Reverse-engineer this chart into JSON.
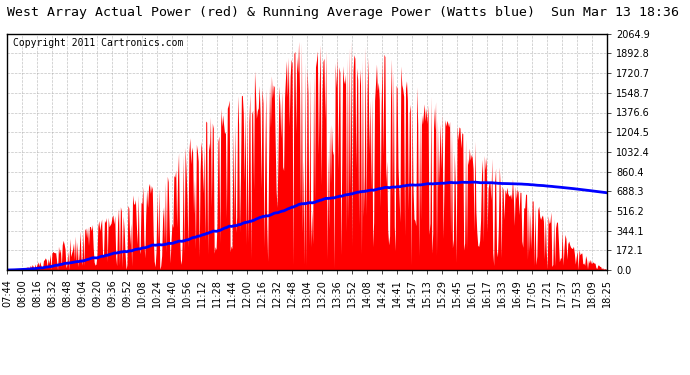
{
  "title": "West Array Actual Power (red) & Running Average Power (Watts blue)  Sun Mar 13 18:36",
  "copyright": "Copyright 2011 Cartronics.com",
  "background_color": "#ffffff",
  "plot_bg_color": "#ffffff",
  "grid_color": "#aaaaaa",
  "yticks": [
    0.0,
    172.1,
    344.1,
    516.2,
    688.3,
    860.4,
    1032.4,
    1204.5,
    1376.6,
    1548.7,
    1720.7,
    1892.8,
    2064.9
  ],
  "ymax": 2064.9,
  "ymin": 0.0,
  "xtick_labels": [
    "07:44",
    "08:00",
    "08:16",
    "08:32",
    "08:48",
    "09:04",
    "09:20",
    "09:36",
    "09:52",
    "10:08",
    "10:24",
    "10:40",
    "10:56",
    "11:12",
    "11:28",
    "11:44",
    "12:00",
    "12:16",
    "12:32",
    "12:48",
    "13:04",
    "13:20",
    "13:36",
    "13:52",
    "14:08",
    "14:24",
    "14:41",
    "14:57",
    "15:13",
    "15:29",
    "15:45",
    "16:01",
    "16:17",
    "16:33",
    "16:49",
    "17:05",
    "17:21",
    "17:37",
    "17:53",
    "18:09",
    "18:25"
  ],
  "title_fontsize": 9.5,
  "copyright_fontsize": 7,
  "tick_fontsize": 7,
  "bar_color": "#ff0000",
  "line_color": "#0000ff",
  "line_width": 2.0
}
